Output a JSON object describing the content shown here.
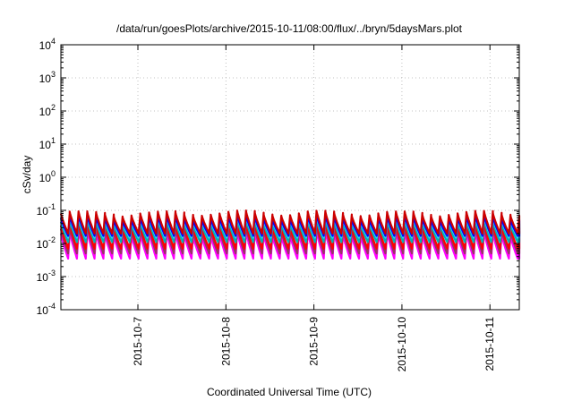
{
  "chart_data": {
    "type": "line",
    "title": "/data/run/goesPlots/archive/2015-10-11/08:00/flux/../bryn/5daysMars.plot",
    "xlabel": "Coordinated Universal Time (UTC)",
    "ylabel": "cSv/day",
    "yscale": "log",
    "ylim": [
      0.0001,
      10000
    ],
    "ytick_labels": [
      {
        "base": "10",
        "exp": "-4"
      },
      {
        "base": "10",
        "exp": "-3"
      },
      {
        "base": "10",
        "exp": "-2"
      },
      {
        "base": "10",
        "exp": "-1"
      },
      {
        "base": "10",
        "exp": "0"
      },
      {
        "base": "10",
        "exp": "1"
      },
      {
        "base": "10",
        "exp": "2"
      },
      {
        "base": "10",
        "exp": "3"
      },
      {
        "base": "10",
        "exp": "4"
      }
    ],
    "xlim": [
      "2015-10-06 03:00",
      "2015-10-11 08:00"
    ],
    "xtick_labels": [
      "2015-10-7",
      "2015-10-8",
      "2015-10-9",
      "2015-10-10",
      "2015-10-11"
    ],
    "grid": true,
    "sawtooth_cycles": 52,
    "series": [
      {
        "color": "#ff00ff",
        "peak": 0.02,
        "trough": 0.0035
      },
      {
        "color": "#993366",
        "peak": 0.028,
        "trough": 0.005
      },
      {
        "color": "#ff0000",
        "peak": 0.035,
        "trough": 0.007
      },
      {
        "color": "#00b3b3",
        "peak": 0.045,
        "trough": 0.011
      },
      {
        "color": "#33ccff",
        "peak": 0.055,
        "trough": 0.015
      },
      {
        "color": "#0000ff",
        "peak": 0.06,
        "trough": 0.017
      },
      {
        "color": "#cc0000",
        "peak": 0.08,
        "trough": 0.02
      }
    ]
  }
}
